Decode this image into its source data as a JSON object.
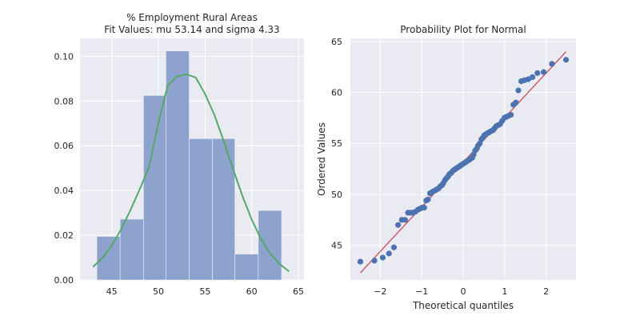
{
  "chart_data": [
    {
      "type": "bar",
      "title": "% Employment Rural Areas",
      "subtitle": "Fit Values: mu 53.14 and sigma 4.33",
      "xlabel": "",
      "ylabel": "",
      "xlim": [
        41.6,
        65.6
      ],
      "ylim": [
        0,
        0.108
      ],
      "xticks": [
        45,
        50,
        55,
        60,
        65
      ],
      "yticks": [
        0.0,
        0.02,
        0.04,
        0.06,
        0.08,
        0.1
      ],
      "ytick_labels": [
        "0.00",
        "0.02",
        "0.04",
        "0.06",
        "0.08",
        "0.10"
      ],
      "grid": true,
      "bar_color": "#8da2cc",
      "fit_color": "#55a868",
      "bins": [
        {
          "start": 43.4,
          "end": 45.9,
          "value": 0.0195
        },
        {
          "start": 45.9,
          "end": 48.4,
          "value": 0.0272
        },
        {
          "start": 48.4,
          "end": 50.8,
          "value": 0.0825
        },
        {
          "start": 50.8,
          "end": 53.3,
          "value": 0.1024
        },
        {
          "start": 53.3,
          "end": 55.8,
          "value": 0.0632
        },
        {
          "start": 55.8,
          "end": 58.2,
          "value": 0.0632
        },
        {
          "start": 58.2,
          "end": 60.7,
          "value": 0.0116
        },
        {
          "start": 60.7,
          "end": 63.2,
          "value": 0.0311
        }
      ],
      "fit_line": {
        "x": [
          43.0,
          44.0,
          45.0,
          46.0,
          47.0,
          48.0,
          49.0,
          50.0,
          51.0,
          52.0,
          53.0,
          54.0,
          55.0,
          56.0,
          57.0,
          58.0,
          59.0,
          60.0,
          61.0,
          62.0,
          63.0,
          64.0
        ],
        "y": [
          0.0059,
          0.0098,
          0.0154,
          0.0226,
          0.0312,
          0.0406,
          0.0505,
          0.0703,
          0.087,
          0.091,
          0.092,
          0.0905,
          0.0831,
          0.0738,
          0.0621,
          0.0496,
          0.0376,
          0.027,
          0.0183,
          0.0117,
          0.0071,
          0.0038
        ]
      }
    },
    {
      "type": "scatter",
      "title": "Probability Plot for Normal",
      "xlabel": "Theoretical quantiles",
      "ylabel": "Ordered Values",
      "xlim": [
        -2.72,
        2.72
      ],
      "ylim": [
        41.6,
        65.3
      ],
      "xticks": [
        -2,
        -1,
        0,
        1,
        2
      ],
      "xtick_labels": [
        "−2",
        "−1",
        "0",
        "1",
        "2"
      ],
      "yticks": [
        45,
        50,
        55,
        60,
        65
      ],
      "grid": true,
      "point_color": "#4c72b0",
      "line_color": "#c44e52",
      "fit_line": {
        "x": [
          -2.48,
          2.48
        ],
        "y": [
          42.3,
          64.0
        ]
      },
      "points": [
        [
          -2.48,
          43.4
        ],
        [
          -2.14,
          43.5
        ],
        [
          -1.94,
          43.8
        ],
        [
          -1.79,
          44.2
        ],
        [
          -1.67,
          44.8
        ],
        [
          -1.57,
          47.0
        ],
        [
          -1.48,
          47.5
        ],
        [
          -1.4,
          47.5
        ],
        [
          -1.33,
          48.2
        ],
        [
          -1.27,
          48.2
        ],
        [
          -1.21,
          48.2
        ],
        [
          -1.15,
          48.3
        ],
        [
          -1.09,
          48.5
        ],
        [
          -1.04,
          48.6
        ],
        [
          -0.99,
          48.7
        ],
        [
          -0.94,
          48.7
        ],
        [
          -0.89,
          49.4
        ],
        [
          -0.85,
          49.5
        ],
        [
          -0.8,
          50.1
        ],
        [
          -0.76,
          50.2
        ],
        [
          -0.72,
          50.3
        ],
        [
          -0.67,
          50.4
        ],
        [
          -0.63,
          50.5
        ],
        [
          -0.59,
          50.6
        ],
        [
          -0.55,
          50.8
        ],
        [
          -0.51,
          50.9
        ],
        [
          -0.48,
          51.1
        ],
        [
          -0.44,
          51.4
        ],
        [
          -0.4,
          51.6
        ],
        [
          -0.36,
          51.8
        ],
        [
          -0.33,
          52.0
        ],
        [
          -0.29,
          52.1
        ],
        [
          -0.25,
          52.3
        ],
        [
          -0.22,
          52.4
        ],
        [
          -0.18,
          52.5
        ],
        [
          -0.15,
          52.6
        ],
        [
          -0.11,
          52.7
        ],
        [
          -0.07,
          52.8
        ],
        [
          -0.04,
          52.9
        ],
        [
          0.0,
          53.0
        ],
        [
          0.04,
          53.1
        ],
        [
          0.07,
          53.2
        ],
        [
          0.11,
          53.3
        ],
        [
          0.15,
          53.4
        ],
        [
          0.18,
          53.5
        ],
        [
          0.22,
          53.6
        ],
        [
          0.25,
          53.9
        ],
        [
          0.29,
          54.3
        ],
        [
          0.33,
          54.5
        ],
        [
          0.36,
          54.8
        ],
        [
          0.4,
          55.0
        ],
        [
          0.44,
          55.4
        ],
        [
          0.48,
          55.6
        ],
        [
          0.51,
          55.8
        ],
        [
          0.55,
          55.9
        ],
        [
          0.59,
          56.0
        ],
        [
          0.63,
          56.1
        ],
        [
          0.67,
          56.2
        ],
        [
          0.72,
          56.3
        ],
        [
          0.76,
          56.5
        ],
        [
          0.8,
          56.7
        ],
        [
          0.85,
          56.8
        ],
        [
          0.89,
          56.9
        ],
        [
          0.94,
          57.2
        ],
        [
          0.99,
          57.5
        ],
        [
          1.04,
          57.6
        ],
        [
          1.09,
          57.7
        ],
        [
          1.15,
          57.8
        ],
        [
          1.21,
          58.8
        ],
        [
          1.27,
          59.0
        ],
        [
          1.33,
          60.2
        ],
        [
          1.4,
          61.1
        ],
        [
          1.48,
          61.2
        ],
        [
          1.57,
          61.3
        ],
        [
          1.67,
          61.5
        ],
        [
          1.79,
          61.9
        ],
        [
          1.94,
          62.0
        ],
        [
          2.14,
          62.8
        ],
        [
          2.48,
          63.2
        ]
      ]
    }
  ]
}
